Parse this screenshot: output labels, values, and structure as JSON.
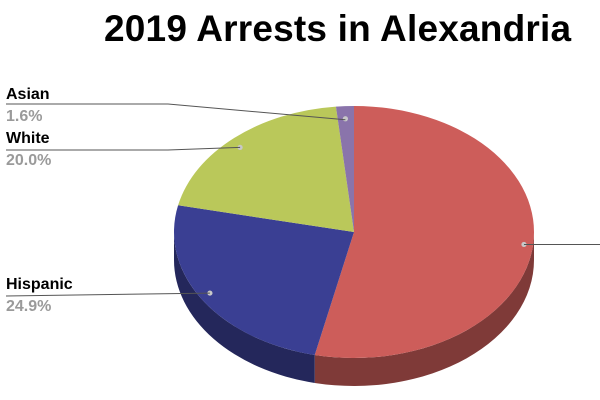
{
  "chart_data": {
    "type": "pie",
    "title": "2019 Arrests in Alexandria",
    "three_d": true,
    "slices": [
      {
        "label": "",
        "value": 53.5,
        "display": "",
        "color": "#cd5d5a"
      },
      {
        "label": "Hispanic",
        "value": 24.9,
        "display": "24.9%",
        "color": "#3a3f93"
      },
      {
        "label": "White",
        "value": 20.0,
        "display": "20.0%",
        "color": "#bac85a"
      },
      {
        "label": "Asian",
        "value": 1.6,
        "display": "1.6%",
        "color": "#8a74ab"
      }
    ]
  }
}
